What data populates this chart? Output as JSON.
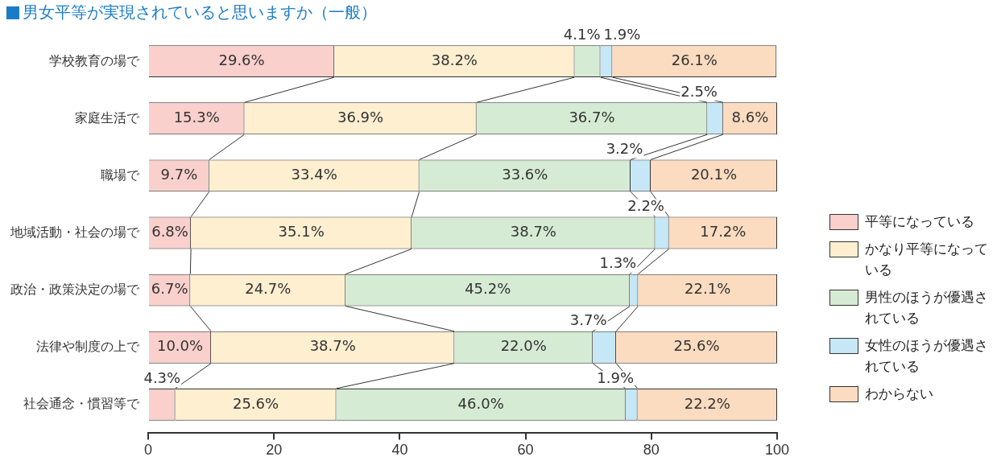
{
  "chart_data": {
    "type": "bar",
    "orientation": "horizontal",
    "stacked": true,
    "title": "男女平等が実現されていると思いますか（一般）",
    "categories": [
      "学校教育の場で",
      "家庭生活で",
      "職場で",
      "地域活動・社会の場で",
      "政治・政策決定の場で",
      "法律や制度の上で",
      "社会通念・慣習等で"
    ],
    "series": [
      {
        "name": "平等になっている",
        "color": "#f9d0cc",
        "values": [
          29.6,
          15.3,
          9.7,
          6.8,
          6.7,
          10.0,
          4.3
        ],
        "value_labels": [
          "29.6%",
          "15.3%",
          "9.7%",
          "6.8%",
          "6.7%",
          "10.0%",
          "4.3%"
        ]
      },
      {
        "name": "かなり平等になっている",
        "color": "#fdefd0",
        "values": [
          38.2,
          36.9,
          33.4,
          35.1,
          24.7,
          38.7,
          25.6
        ],
        "value_labels": [
          "38.2%",
          "36.9%",
          "33.4%",
          "35.1%",
          "24.7%",
          "38.7%",
          "25.6%"
        ]
      },
      {
        "name": "男性のほうが優遇されている",
        "color": "#d6ebd4",
        "values": [
          4.1,
          36.7,
          33.6,
          38.7,
          45.2,
          22.0,
          46.0
        ],
        "value_labels": [
          "4.1%",
          "36.7%",
          "33.6%",
          "38.7%",
          "45.2%",
          "22.0%",
          "46.0%"
        ]
      },
      {
        "name": "女性のほうが優遇されている",
        "color": "#c6e7f5",
        "values": [
          1.9,
          2.5,
          3.2,
          2.2,
          1.3,
          3.7,
          1.9
        ],
        "value_labels": [
          "1.9%",
          "2.5%",
          "3.2%",
          "2.2%",
          "1.3%",
          "3.7%",
          "1.9%"
        ]
      },
      {
        "name": "わからない",
        "color": "#fcdcc0",
        "values": [
          26.1,
          8.6,
          20.1,
          17.2,
          22.1,
          25.6,
          22.2
        ],
        "value_labels": [
          "26.1%",
          "8.6%",
          "20.1%",
          "17.2%",
          "22.1%",
          "25.6%",
          "22.2%"
        ]
      }
    ],
    "xlim": [
      0,
      100
    ],
    "xticks": [
      0,
      20,
      40,
      60,
      80,
      100
    ],
    "grid": false,
    "legend": "right"
  }
}
